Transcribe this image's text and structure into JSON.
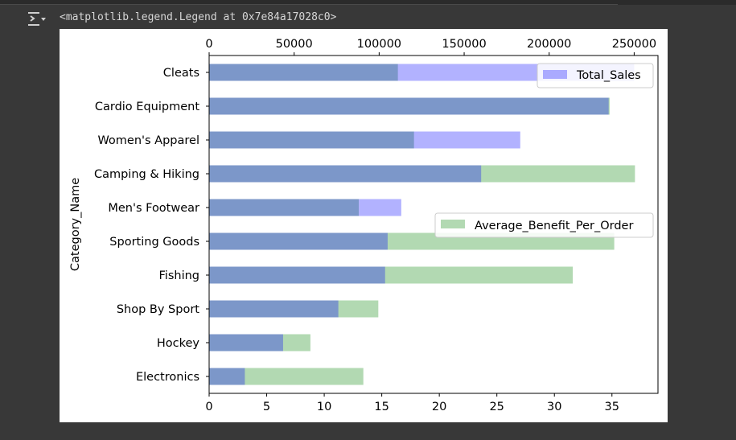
{
  "cell": {
    "output_repr": "<matplotlib.legend.Legend at 0x7e84a17028c0>",
    "output_icon": "output-toggle-icon"
  },
  "chart_data": {
    "type": "bar",
    "orientation": "horizontal",
    "ylabel": "Category_Name",
    "categories": [
      "Cleats",
      "Cardio Equipment",
      "Women's Apparel",
      "Camping & Hiking",
      "Men's Footwear",
      "Sporting Goods",
      "Fishing",
      "Shop By Sport",
      "Hockey",
      "Electronics"
    ],
    "series": [
      {
        "name": "Total_Sales",
        "axis": "top",
        "color": "#0000ff",
        "alpha": 0.3,
        "values": [
          250000,
          235000,
          183000,
          160000,
          113000,
          105000,
          103500,
          76000,
          43500,
          21000
        ],
        "xlim": [
          0,
          264000
        ],
        "ticks": [
          0,
          50000,
          100000,
          150000,
          200000,
          250000
        ],
        "tick_labels": [
          "0",
          "50000",
          "100000",
          "150000",
          "200000",
          "250000"
        ],
        "legend": "top-right"
      },
      {
        "name": "Average_Benefit_Per_Order",
        "axis": "bottom",
        "color": "#008000",
        "alpha": 0.3,
        "values": [
          16.4,
          34.8,
          17.8,
          37.0,
          13.0,
          35.2,
          31.6,
          14.7,
          8.8,
          13.4
        ],
        "xlim": [
          0,
          39
        ],
        "ticks": [
          0,
          5,
          10,
          15,
          20,
          25,
          30,
          35
        ],
        "tick_labels": [
          "0",
          "5",
          "10",
          "15",
          "20",
          "25",
          "30",
          "35"
        ],
        "legend": "center-right"
      }
    ]
  }
}
